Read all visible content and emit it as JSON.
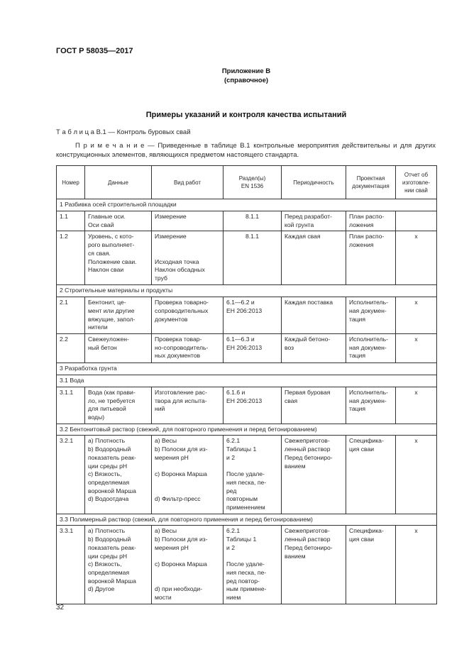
{
  "header": {
    "doc_code": "ГОСТ Р 58035—2017"
  },
  "annex": {
    "title": "Приложение В",
    "type": "(справочное)"
  },
  "main_title": "Примеры указаний и контроля качества испытаний",
  "table_caption": "Т а б л и ц а  В.1 — Контроль буровых свай",
  "note": "П р и м е ч а н и е — Приведенные в таблице В.1 контрольные мероприятия действительны и для других конструкционных элементов, являющихся предметом настоящего стандарта.",
  "table": {
    "columns": [
      "Номер",
      "Данные",
      "Вид работ",
      "Раздел(ы)\nEN 1536",
      "Периодичность",
      "Проектная\nдокументация",
      "Отчет об\nизготовле-\nнии свай"
    ],
    "rows": [
      {
        "section": "1  Разбивка осей строительной площадки"
      },
      {
        "cells": [
          "1.1",
          "Главные       оси.\nОси свай",
          "Измерение",
          "8.1.1",
          "Перед разработ-\nкой грунта",
          "План   распо-\nложения",
          ""
        ]
      },
      {
        "cells": [
          "1.2",
          "Уровень, с кото-\nрого выполняет-\nся свая.\nПоложение сваи.\nНаклон сваи",
          "Измерение\n\n\nИсходная точка\nНаклон   обсадных\nтруб",
          "8.1.1",
          "Каждая свая",
          "План   распо-\nложения",
          "x"
        ]
      },
      {
        "section": "2  Строительные материалы и продукты"
      },
      {
        "cells": [
          "2.1",
          "Бентонит,       це-\nмент или другие\nвяжущие, запол-\nнители",
          "Проверка товарно-\nсопроводительных\nдокументов",
          "6.1—6.2 и\nЕН 206:2013",
          "Каждая поставка",
          "Исполнитель-\nная докумен-\nтация",
          "x"
        ]
      },
      {
        "cells": [
          "2.2",
          "Свежеуложен-\nный бетон",
          "Проверка    товар-\nно-сопроводитель-\nных документов",
          "6.1—6.3 и\nЕН 206:2013",
          "Каждый бетоно-\nвоз",
          "Исполнитель-\nная докумен-\nтация",
          "x"
        ]
      },
      {
        "section": "3  Разработка грунта"
      },
      {
        "section": "3.1  Вода"
      },
      {
        "cells": [
          "3.1.1",
          "Вода (как прави-\nло, не требуется\nдля         питьевой\nводы)",
          "Изготовление рас-\nтвора для испыта-\nний",
          "6.1.6 и\nЕН 206:2013",
          "Первая буровая\nсвая",
          "Исполнитель-\nная докумен-\nтация",
          "x"
        ]
      },
      {
        "section": "3.2  Бентонитовый раствор (свежий, для повторного применения и перед бетонированием)"
      },
      {
        "cells": [
          "3.2.1",
          "a) Плотность\nb) Водородный\nпоказатель реак-\nции среды pH\nc) Вязкость,\nопределяемая\nворонкой Марша\nd) Водоотдача",
          "a) Весы\nb) Полоски для из-\nмерения pH\n\nc) Воронка Марша\n\n\nd) Фильтр-пресс",
          "6.2.1\nТаблицы 1\nи 2\n\nПосле  удале-\nния песка, пе-\nред\nповторным\nприменением",
          "Свежеприготов-\nленный раствор\nПеред бетониро-\nванием",
          "Специфика-\nция сваи",
          "x"
        ]
      },
      {
        "section": "3.3  Полимерный раствор (свежий, для повторного применения и перед бетонированием)"
      },
      {
        "cells": [
          "3.3.1",
          "a) Плотность\nb) Водородный\nпоказатель реак-\nции среды pH\nc) Вязкость,\nопределяемая\nворонкой Марша\nd) Другое",
          "a) Весы\nb) Полоски для из-\nмерения pH\n\nc) Воронка Марша\n\n\nd) при    необходи-\nмости",
          "6.2.1\nТаблицы 1\nи 2\n\nПосле  удале-\nния песка, пе-\nред    повтор-\nным примене-\nнием",
          "Свежеприготов-\nленный раствор\nПеред бетониро-\nванием",
          "Специфика-\nция сваи",
          "x"
        ]
      }
    ]
  },
  "page_number": "32"
}
